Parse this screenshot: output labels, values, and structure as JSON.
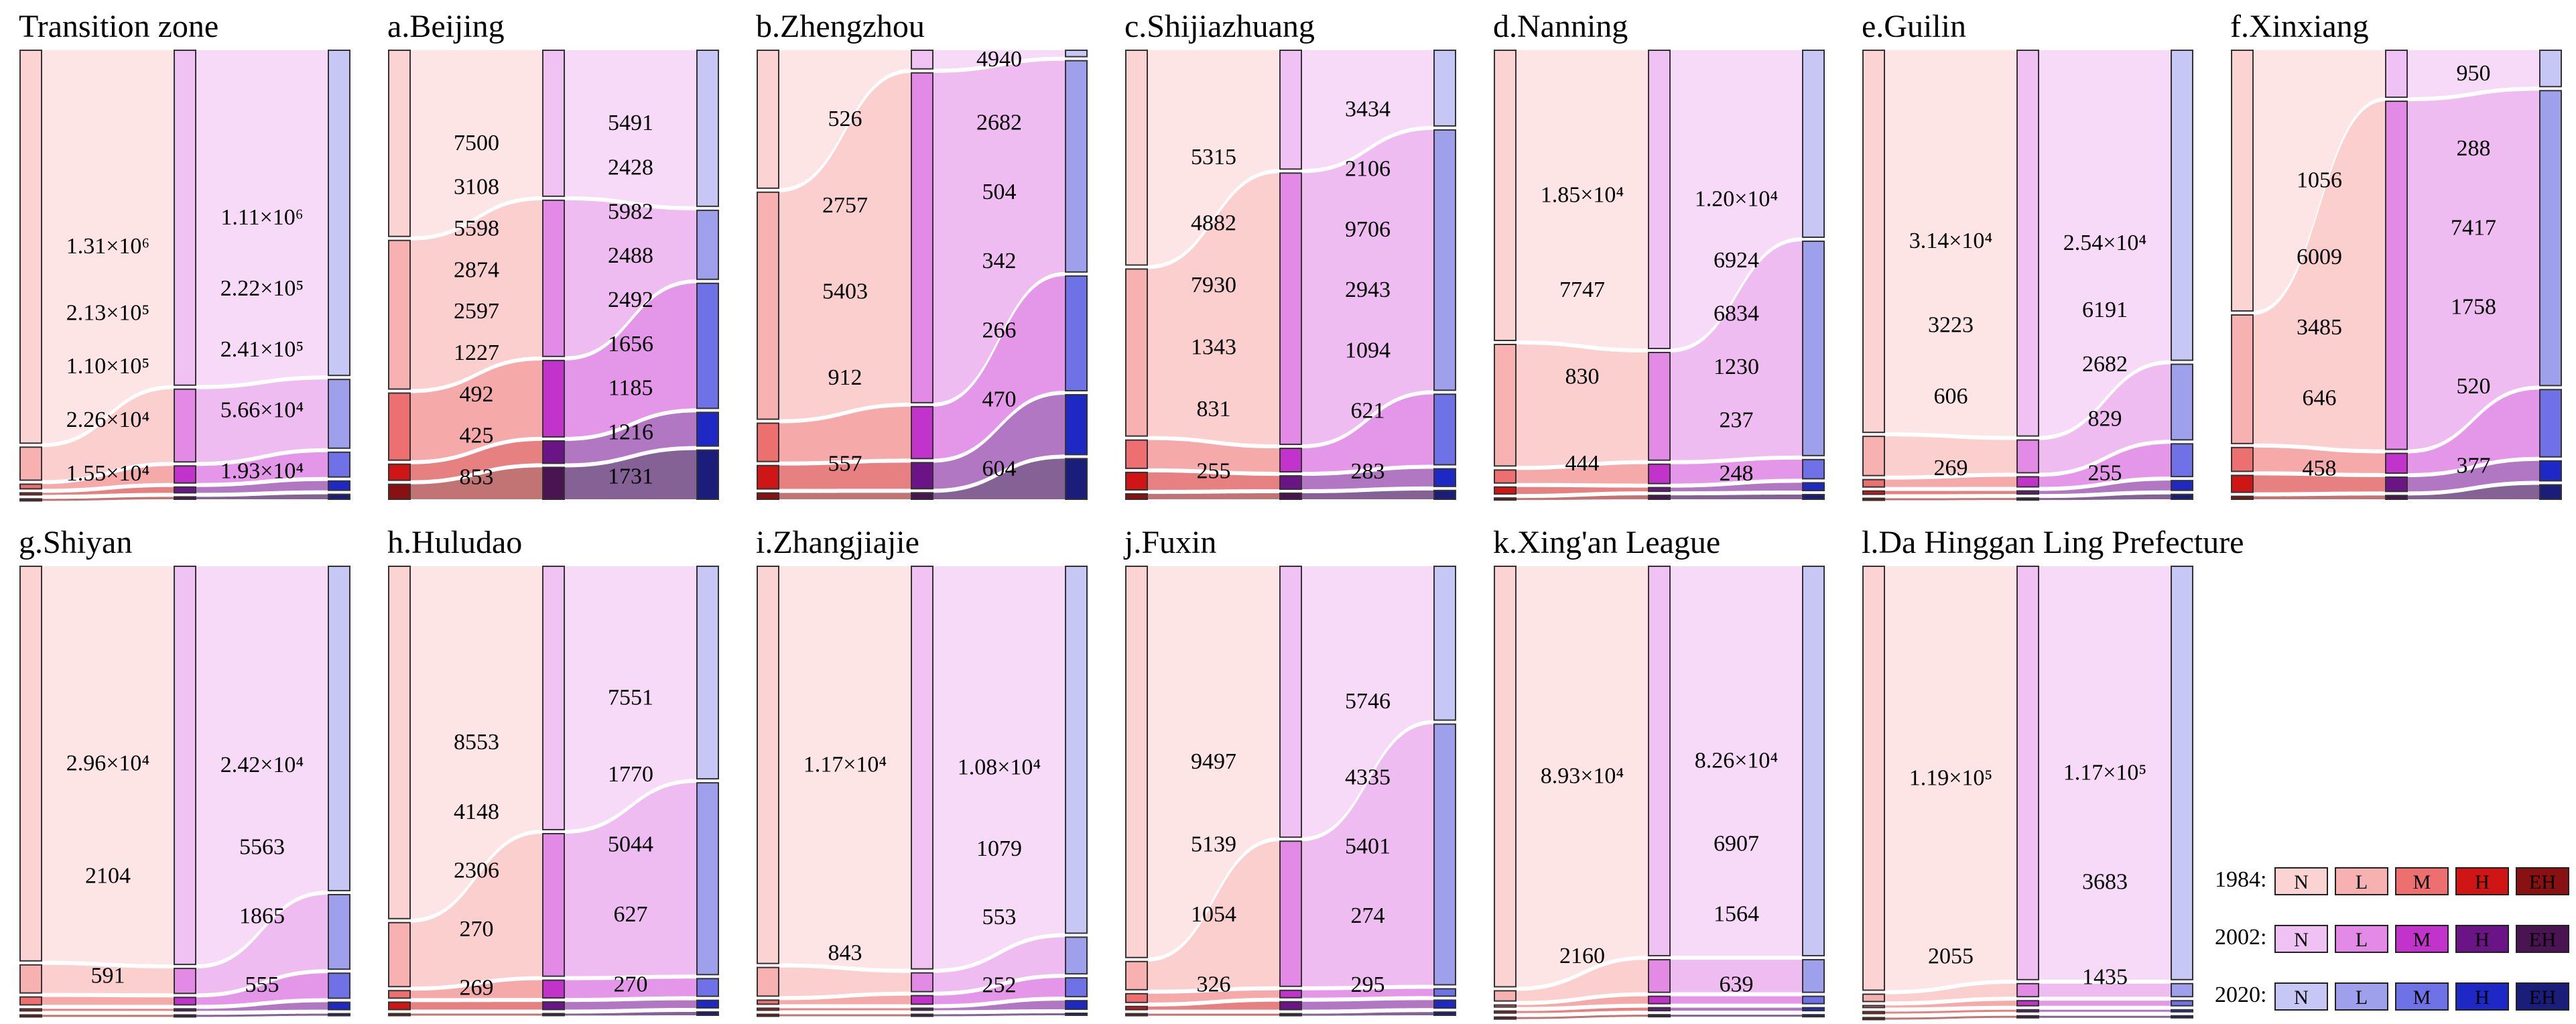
{
  "chart_data": {
    "type": "sankey",
    "stage_order": [
      "1984",
      "2002",
      "2020"
    ],
    "classes": [
      "N",
      "L",
      "M",
      "H",
      "EH"
    ],
    "colors": {
      "1984": [
        "#fbd3d3",
        "#f8b1b1",
        "#ee6f6f",
        "#d01515",
        "#8a1111"
      ],
      "2002": [
        "#f0c2f3",
        "#e28ae6",
        "#c233cc",
        "#6b1485",
        "#4a1452"
      ],
      "2020": [
        "#c6c7f4",
        "#9ea0ec",
        "#6f72e6",
        "#1e28c4",
        "#1a1d7a"
      ],
      "link_1984": [
        "#fde0e0",
        "#fbc7c7",
        "#f59a9a",
        "#e36b6b",
        "#b75a5a"
      ],
      "link_2002": [
        "#f4d3f7",
        "#ebb0ee",
        "#df84e5",
        "#a55fb8",
        "#6f4682"
      ],
      "stroke": "#333333"
    },
    "panels": [
      {
        "title": "Transition zone",
        "y1984": [
          1310000,
          110000,
          15500,
          5000,
          3000
        ],
        "y2002": [
          1110000,
          241000,
          56600,
          19300,
          8000
        ],
        "y2020": [
          1050000,
          222000,
          80000,
          30000,
          16000
        ],
        "labels1984": [
          "1.31×10⁶",
          "2.13×10⁵",
          "1.10×10⁵",
          "2.26×10⁴",
          "1.55×10⁴"
        ],
        "labels2002": [
          "1.11×10⁶",
          "2.22×10⁵",
          "2.41×10⁵",
          "5.66×10⁴",
          "1.93×10⁴"
        ]
      },
      {
        "title": "a.Beijing",
        "y1984": [
          10608,
          8472,
          3824,
          917,
          853
        ],
        "y2002": [
          7919,
          8470,
          4148,
          1216,
          1731
        ],
        "y2020": [
          5491,
          2428,
          4400,
          1185,
          1731
        ],
        "labels1984": [
          "7500",
          "3108",
          "5598",
          "2874",
          "2597",
          "1227",
          "492",
          "425",
          "853"
        ],
        "labels2002": [
          "5491",
          "2428",
          "5982",
          "2488",
          "2492",
          "1656",
          "1185",
          "1216",
          "1731"
        ]
      },
      {
        "title": "b.Zhengzhou",
        "y1984": [
          3283,
          5403,
          912,
          557,
          150
        ],
        "y2002": [
          430,
          7622,
          1200,
          604,
          150
        ],
        "y2020": [
          150,
          4940,
          2682,
          1400,
          950
        ],
        "labels1984": [
          "526",
          "2757",
          "5403",
          "912",
          "557"
        ],
        "labels2002": [
          "4940",
          "2682",
          "504",
          "342",
          "266",
          "470",
          "604"
        ]
      },
      {
        "title": "c.Shijiazhuang",
        "y1984": [
          10197,
          7930,
          1343,
          831,
          255
        ],
        "y2002": [
          5540,
          12649,
          1094,
          621,
          283
        ],
        "y2020": [
          3434,
          11812,
          3200,
          800,
          400
        ],
        "labels1984": [
          "5315",
          "4882",
          "7930",
          "1343",
          "831",
          "255"
        ],
        "labels2002": [
          "3434",
          "2106",
          "9706",
          "2943",
          "1094",
          "621",
          "283"
        ]
      },
      {
        "title": "d.Nanning",
        "y1984": [
          18500,
          7747,
          830,
          444,
          80
        ],
        "y2002": [
          18924,
          6834,
          1230,
          237,
          248
        ],
        "y2020": [
          12000,
          13758,
          1230,
          500,
          300
        ],
        "labels1984": [
          "1.85×10⁴",
          "7747",
          "830",
          "444"
        ],
        "labels2002": [
          "1.20×10⁴",
          "6924",
          "6834",
          "1230",
          "237",
          "248"
        ]
      },
      {
        "title": "e.Guilin",
        "y1984": [
          31400,
          3223,
          606,
          269,
          80
        ],
        "y2002": [
          31591,
          2682,
          829,
          255,
          100
        ],
        "y2020": [
          25400,
          6191,
          2682,
          800,
          400
        ],
        "labels1984": [
          "3.14×10⁴",
          "3223",
          "606",
          "269"
        ],
        "labels2002": [
          "2.54×10⁴",
          "6191",
          "2682",
          "829",
          "255"
        ]
      },
      {
        "title": "f.Xinxiang",
        "y1984": [
          7065,
          3485,
          646,
          458,
          80
        ],
        "y2002": [
          1238,
          9175,
          520,
          377,
          100
        ],
        "y2020": [
          950,
          7705,
          1758,
          520,
          377
        ],
        "labels1984": [
          "1056",
          "6009",
          "3485",
          "646",
          "458"
        ],
        "labels2002": [
          "950",
          "288",
          "7417",
          "1758",
          "520",
          "377"
        ]
      },
      {
        "title": "g.Shiyan",
        "y1984": [
          29600,
          2104,
          591,
          120,
          60
        ],
        "y2002": [
          29763,
          1865,
          555,
          120,
          60
        ],
        "y2020": [
          24200,
          5563,
          1865,
          555,
          120
        ],
        "labels1984": [
          "2.96×10⁴",
          "2104",
          "591"
        ],
        "labels2002": [
          "2.42×10⁴",
          "5563",
          "1865",
          "555"
        ]
      },
      {
        "title": "h.Huludao",
        "y1984": [
          12701,
          2306,
          270,
          269,
          60
        ],
        "y2002": [
          9321,
          5044,
          627,
          270,
          60
        ],
        "y2020": [
          7551,
          6814,
          627,
          270,
          120
        ],
        "labels1984": [
          "8553",
          "4148",
          "2306",
          "270",
          "269"
        ],
        "labels2002": [
          "7551",
          "1770",
          "5044",
          "627",
          "270"
        ]
      },
      {
        "title": "i.Zhangjiajie",
        "y1984": [
          11700,
          843,
          120,
          60,
          30
        ],
        "y2002": [
          11879,
          553,
          252,
          60,
          30
        ],
        "y2020": [
          10800,
          1079,
          553,
          252,
          60
        ],
        "labels1984": [
          "1.17×10⁴",
          "843"
        ],
        "labels2002": [
          "1.08×10⁴",
          "1079",
          "553",
          "252"
        ]
      },
      {
        "title": "j.Fuxin",
        "y1984": [
          14636,
          1054,
          326,
          120,
          60
        ],
        "y2002": [
          10081,
          5401,
          274,
          295,
          60
        ],
        "y2020": [
          5746,
          9736,
          274,
          295,
          120
        ],
        "labels1984": [
          "9497",
          "5139",
          "1054",
          "326"
        ],
        "labels2002": [
          "5746",
          "4335",
          "5401",
          "274",
          "295"
        ]
      },
      {
        "title": "k.Xing'an League",
        "y1984": [
          89300,
          2160,
          300,
          120,
          60
        ],
        "y2002": [
          82600,
          6907,
          1564,
          639,
          120
        ],
        "y2020": [
          82600,
          6907,
          1564,
          639,
          120
        ],
        "labels1984": [
          "8.93×10⁴",
          "2160"
        ],
        "labels2002": [
          "8.26×10⁴",
          "6907",
          "1564",
          "639"
        ]
      },
      {
        "title": "l.Da Hinggan Ling Prefecture",
        "y1984": [
          119000,
          2055,
          300,
          120,
          60
        ],
        "y2002": [
          117000,
          3683,
          1435,
          300,
          120
        ],
        "y2020": [
          117000,
          3683,
          1435,
          300,
          120
        ],
        "labels1984": [
          "1.19×10⁵",
          "2055"
        ],
        "labels2002": [
          "1.17×10⁵",
          "3683",
          "1435"
        ]
      }
    ],
    "legend": {
      "rows": [
        {
          "year": "1984",
          "sep": ":"
        },
        {
          "year": "2002",
          "sep": ":"
        },
        {
          "year": "2020",
          "sep": ":"
        }
      ],
      "codes": [
        "N",
        "L",
        "M",
        "H",
        "EH"
      ]
    }
  }
}
